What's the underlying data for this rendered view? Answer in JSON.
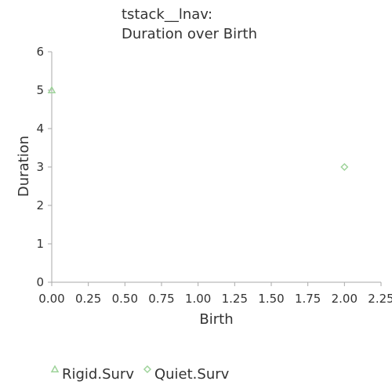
{
  "chart_data": {
    "type": "scatter",
    "title_lines": [
      "tstack__lnav:",
      "Duration over Birth"
    ],
    "xlabel": "Birth",
    "ylabel": "Duration",
    "xlim": [
      0,
      2.25
    ],
    "ylim": [
      0,
      6
    ],
    "x_ticks": [
      "0.00",
      "0.25",
      "0.50",
      "0.75",
      "1.00",
      "1.25",
      "1.50",
      "1.75",
      "2.00",
      "2.25"
    ],
    "y_ticks": [
      "0",
      "1",
      "2",
      "3",
      "4",
      "5",
      "6"
    ],
    "grid": false,
    "legend_position": "bottom",
    "series": [
      {
        "name": "Rigid.Surv",
        "marker": "triangle",
        "color": "#9ed39a",
        "points": [
          {
            "x": 0.0,
            "y": 5.0
          }
        ]
      },
      {
        "name": "Quiet.Surv",
        "marker": "diamond",
        "color": "#9ed39a",
        "points": [
          {
            "x": 2.0,
            "y": 3.0
          }
        ]
      }
    ],
    "axis_color": "#aaaaaa",
    "text_color": "#333333"
  }
}
